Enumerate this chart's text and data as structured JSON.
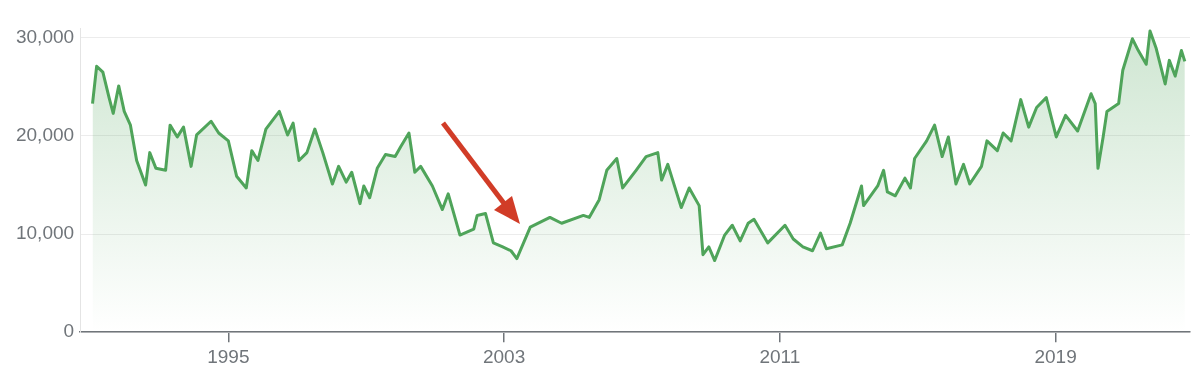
{
  "chart_data": {
    "type": "area",
    "x": [
      1991.06,
      1991.18,
      1991.36,
      1991.54,
      1991.66,
      1991.82,
      1991.98,
      1992.16,
      1992.34,
      1992.6,
      1992.72,
      1992.9,
      1993.18,
      1993.31,
      1993.52,
      1993.7,
      1993.92,
      1994.08,
      1994.5,
      1994.72,
      1995.0,
      1995.24,
      1995.52,
      1995.68,
      1995.86,
      1996.09,
      1996.48,
      1996.72,
      1996.88,
      1997.05,
      1997.28,
      1997.51,
      1997.74,
      1998.02,
      1998.2,
      1998.42,
      1998.58,
      1998.82,
      1998.93,
      1999.1,
      1999.32,
      1999.56,
      1999.84,
      2000.0,
      2000.24,
      2000.41,
      2000.58,
      2000.92,
      2001.21,
      2001.38,
      2001.72,
      2002.12,
      2002.22,
      2002.46,
      2002.69,
      2002.96,
      2003.2,
      2003.37,
      2003.76,
      2004.33,
      2004.67,
      2005.3,
      2005.47,
      2005.76,
      2005.98,
      2006.27,
      2006.44,
      2006.83,
      2007.12,
      2007.46,
      2007.57,
      2007.75,
      2008.14,
      2008.37,
      2008.66,
      2008.77,
      2008.94,
      2009.11,
      2009.4,
      2009.62,
      2009.85,
      2010.08,
      2010.25,
      2010.65,
      2011.15,
      2011.39,
      2011.67,
      2011.95,
      2012.18,
      2012.35,
      2012.81,
      2013.04,
      2013.37,
      2013.43,
      2013.84,
      2014.01,
      2014.12,
      2014.35,
      2014.63,
      2014.79,
      2014.91,
      2015.26,
      2015.49,
      2015.71,
      2015.89,
      2016.11,
      2016.33,
      2016.51,
      2016.85,
      2017.01,
      2017.31,
      2017.48,
      2017.71,
      2017.99,
      2018.22,
      2018.45,
      2018.73,
      2019.02,
      2019.29,
      2019.64,
      2020.03,
      2020.15,
      2020.23,
      2020.38,
      2020.49,
      2020.83,
      2020.95,
      2021.23,
      2021.4,
      2021.63,
      2021.74,
      2021.92,
      2022.18,
      2022.3,
      2022.47,
      2022.65,
      2022.75
    ],
    "series": [
      {
        "color": "#4fa45a",
        "values": [
          23300,
          27100,
          26500,
          23900,
          22300,
          25100,
          22500,
          21100,
          17500,
          15000,
          18300,
          16700,
          16500,
          21100,
          19900,
          20900,
          16900,
          20100,
          21500,
          20300,
          19500,
          15900,
          14700,
          18500,
          17500,
          20700,
          22500,
          20100,
          21300,
          17500,
          18300,
          20700,
          18300,
          15100,
          16900,
          15300,
          16300,
          13100,
          14900,
          13700,
          16700,
          18100,
          17900,
          18900,
          20300,
          16300,
          16900,
          14900,
          12500,
          14100,
          9900,
          10500,
          11900,
          12100,
          9100,
          8700,
          8300,
          7500,
          10700,
          11700,
          11100,
          11900,
          11700,
          13500,
          16500,
          17700,
          14700,
          16500,
          17900,
          18300,
          15500,
          17100,
          12700,
          14700,
          12900,
          7900,
          8700,
          7300,
          9900,
          10900,
          9300,
          11100,
          11500,
          9100,
          10900,
          9500,
          8700,
          8300,
          10100,
          8500,
          8900,
          11100,
          14900,
          12900,
          14900,
          16500,
          14300,
          13900,
          15700,
          14700,
          17700,
          19500,
          21100,
          17900,
          19900,
          15100,
          17100,
          15100,
          16900,
          19500,
          18500,
          20300,
          19500,
          23700,
          20900,
          22900,
          23900,
          19900,
          22100,
          20500,
          24300,
          23300,
          16700,
          19900,
          22500,
          23300,
          26700,
          29900,
          28700,
          27300,
          30700,
          28900,
          25300,
          27700,
          26100,
          28700,
          27600
        ]
      }
    ],
    "xlim": [
      1990.7,
      2022.9
    ],
    "xticks": [
      1995,
      2003,
      2011,
      2019
    ],
    "ylim": [
      0,
      31000
    ],
    "yticks": [
      {
        "value": 0,
        "label": "0"
      },
      {
        "value": 10000,
        "label": "10,000"
      },
      {
        "value": 20000,
        "label": "20,000"
      },
      {
        "value": 30000,
        "label": "30,000"
      }
    ],
    "grid": "y",
    "legend": false,
    "marker": "none",
    "line_style": "solid"
  }
}
